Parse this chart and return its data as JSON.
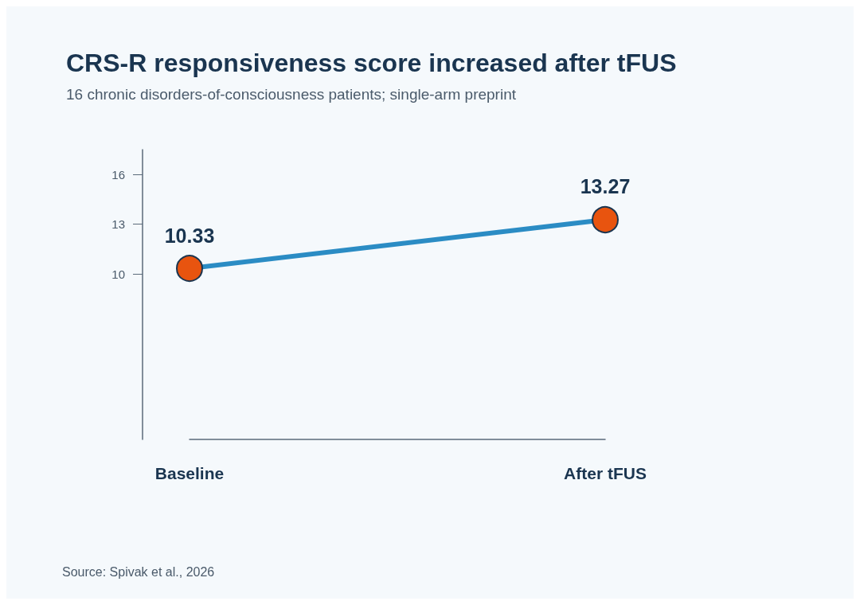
{
  "chart_data": {
    "type": "line",
    "title": "CRS-R responsiveness score increased after tFUS",
    "subtitle": "16 chronic disorders-of-consciousness patients; single-arm preprint",
    "categories": [
      "Baseline",
      "After tFUS"
    ],
    "series": [
      {
        "color": "#2b8cc4",
        "colors": [
          "#e8540f",
          "#e8540f"
        ],
        "values": [
          10.33,
          13.27
        ]
      }
    ],
    "ylim": [
      0,
      17.5
    ],
    "yticks": [
      10,
      13,
      16
    ],
    "data_labels": true,
    "marker": "circle",
    "line_style": "solid",
    "grid": false,
    "annotations": [
      "Source: Spivak et al., 2026"
    ]
  }
}
